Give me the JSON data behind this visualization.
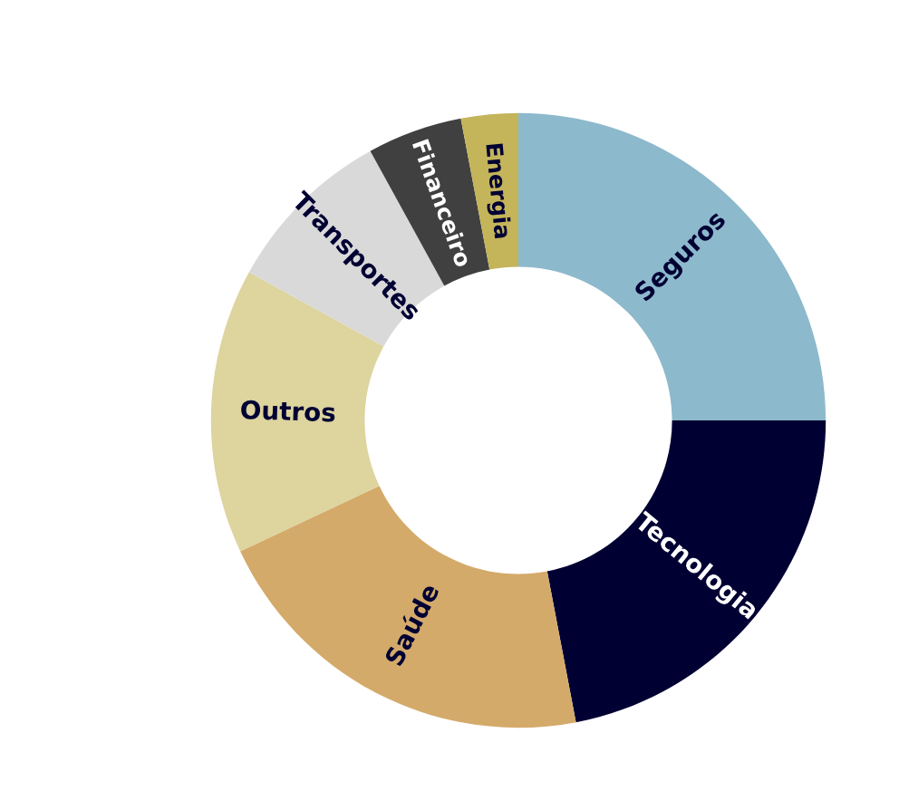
{
  "chart_data": {
    "type": "donut",
    "categories": [
      "Seguros",
      "Tecnologia",
      "Saúde",
      "Outros",
      "Transportes",
      "Financeiro",
      "Energia"
    ],
    "values": [
      25,
      22,
      21,
      15,
      9,
      5,
      3
    ],
    "colors": [
      "#8db9cc",
      "#000033",
      "#d4aa6a",
      "#ddd49e",
      "#d9d9d9",
      "#404040",
      "#c4b45a"
    ],
    "legend": false
  }
}
